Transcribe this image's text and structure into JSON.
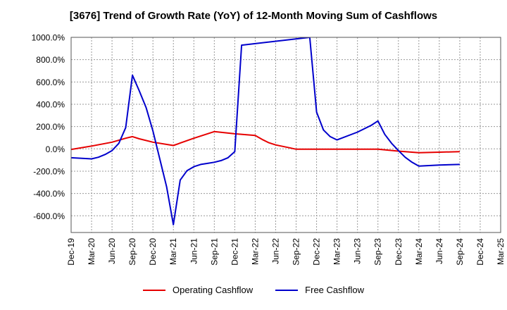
{
  "chart_data": {
    "type": "line",
    "title": "[3676]  Trend of Growth Rate (YoY) of 12-Month Moving Sum of Cashflows",
    "xlabel": "",
    "ylabel": "",
    "ylim": [
      -750,
      1000
    ],
    "yticks": [
      1000,
      800,
      600,
      400,
      200,
      0,
      -200,
      -400,
      -600
    ],
    "ytick_labels": [
      "1000.0%",
      "800.0%",
      "600.0%",
      "400.0%",
      "200.0%",
      "0.0%",
      "-200.0%",
      "-400.0%",
      "-600.0%"
    ],
    "xticks": [
      "Dec-19",
      "Mar-20",
      "Jun-20",
      "Sep-20",
      "Dec-20",
      "Mar-21",
      "Jun-21",
      "Sep-21",
      "Dec-21",
      "Mar-22",
      "Jun-22",
      "Sep-22",
      "Dec-22",
      "Mar-23",
      "Jun-23",
      "Sep-23",
      "Dec-23",
      "Mar-24",
      "Jun-24",
      "Sep-24",
      "Dec-24",
      "Mar-25"
    ],
    "grid": true,
    "legend_position": "bottom-center",
    "series": [
      {
        "name": "Operating Cashflow",
        "color": "#e60000",
        "points": [
          [
            "Dec-19",
            -5
          ],
          [
            "Mar-20",
            25
          ],
          [
            "Jun-20",
            60
          ],
          [
            "Aug-20",
            95
          ],
          [
            "Sep-20",
            110
          ],
          [
            "Oct-20",
            90
          ],
          [
            "Dec-20",
            60
          ],
          [
            "Mar-21",
            30
          ],
          [
            "Jun-21",
            95
          ],
          [
            "Sep-21",
            155
          ],
          [
            "Dec-21",
            135
          ],
          [
            "Mar-22",
            120
          ],
          [
            "Apr-22",
            85
          ],
          [
            "May-22",
            55
          ],
          [
            "Jun-22",
            35
          ],
          [
            "Aug-22",
            10
          ],
          [
            "Sep-22",
            -3
          ],
          [
            "Dec-22",
            -3
          ],
          [
            "Mar-23",
            -3
          ],
          [
            "Jun-23",
            -3
          ],
          [
            "Sep-23",
            -3
          ],
          [
            "Dec-23",
            -20
          ],
          [
            "Mar-24",
            -35
          ],
          [
            "Jun-24",
            -30
          ],
          [
            "Sep-24",
            -25
          ]
        ]
      },
      {
        "name": "Free Cashflow",
        "color": "#0000cc",
        "points": [
          [
            "Dec-19",
            -80
          ],
          [
            "Mar-20",
            -90
          ],
          [
            "Apr-20",
            -75
          ],
          [
            "May-20",
            -50
          ],
          [
            "Jun-20",
            -15
          ],
          [
            "Jul-20",
            50
          ],
          [
            "Aug-20",
            190
          ],
          [
            "Sep-20",
            660
          ],
          [
            "Oct-20",
            520
          ],
          [
            "Nov-20",
            370
          ],
          [
            "Dec-20",
            160
          ],
          [
            "Jan-21",
            -90
          ],
          [
            "Feb-21",
            -340
          ],
          [
            "Mar-21",
            -680
          ],
          [
            "Apr-21",
            -280
          ],
          [
            "May-21",
            -195
          ],
          [
            "Jun-21",
            -160
          ],
          [
            "Jul-21",
            -140
          ],
          [
            "Aug-21",
            -130
          ],
          [
            "Sep-21",
            -120
          ],
          [
            "Oct-21",
            -105
          ],
          [
            "Nov-21",
            -80
          ],
          [
            "Dec-21",
            -25
          ],
          [
            "Jan-22",
            930
          ],
          [
            "Nov-22",
            1000
          ],
          [
            "Dec-22",
            330
          ],
          [
            "Jan-23",
            170
          ],
          [
            "Feb-23",
            110
          ],
          [
            "Mar-23",
            80
          ],
          [
            "Jun-23",
            150
          ],
          [
            "Aug-23",
            210
          ],
          [
            "Sep-23",
            250
          ],
          [
            "Oct-23",
            130
          ],
          [
            "Nov-23",
            50
          ],
          [
            "Dec-23",
            -15
          ],
          [
            "Jan-24",
            -75
          ],
          [
            "Feb-24",
            -120
          ],
          [
            "Mar-24",
            -155
          ],
          [
            "Jun-24",
            -145
          ],
          [
            "Sep-24",
            -140
          ]
        ]
      }
    ]
  }
}
